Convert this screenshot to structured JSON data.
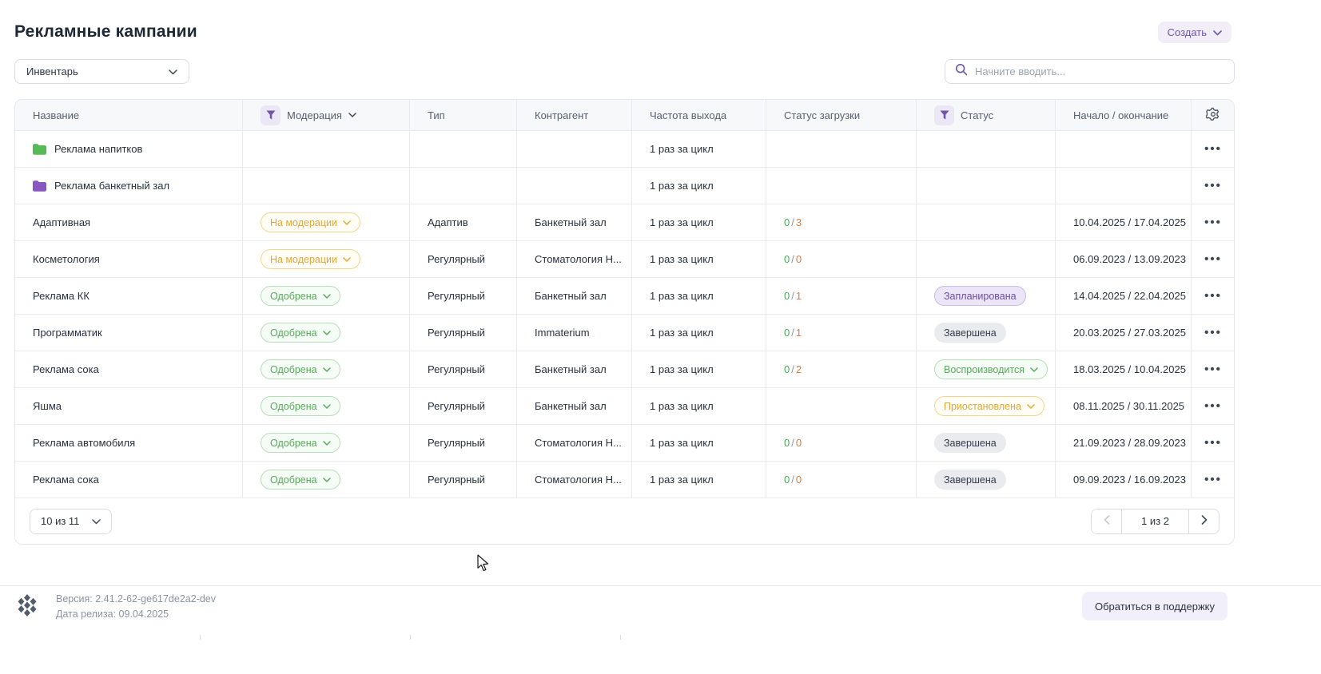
{
  "page_title": "Рекламные кампании",
  "toolbar": {
    "create_button": "Создать",
    "inventory_filter": "Инвентарь",
    "search_placeholder": "Начните вводить..."
  },
  "table": {
    "columns": [
      {
        "key": "name",
        "label": "Название",
        "filter": false,
        "sort": false
      },
      {
        "key": "moderation",
        "label": "Модерация",
        "filter": true,
        "sort": true
      },
      {
        "key": "type",
        "label": "Тип",
        "filter": false,
        "sort": false
      },
      {
        "key": "counterparty",
        "label": "Контрагент",
        "filter": false,
        "sort": false
      },
      {
        "key": "frequency",
        "label": "Частота выхода",
        "filter": false,
        "sort": false
      },
      {
        "key": "upload",
        "label": "Статус загрузки",
        "filter": false,
        "sort": false
      },
      {
        "key": "status",
        "label": "Статус",
        "filter": true,
        "sort": false
      },
      {
        "key": "dates",
        "label": "Начало / окончание",
        "filter": false,
        "sort": false
      }
    ],
    "rows": [
      {
        "name": "Реклама напитков",
        "folder_color": "#57b957",
        "moderation": null,
        "type": "",
        "counterparty": "",
        "frequency": "1 раз за цикл",
        "upload": null,
        "status": null,
        "dates": ""
      },
      {
        "name": "Реклама банкетный зал",
        "folder_color": "#8a56c2",
        "moderation": null,
        "type": "",
        "counterparty": "",
        "frequency": "1 раз за цикл",
        "upload": null,
        "status": null,
        "dates": ""
      },
      {
        "name": "Адаптивная",
        "folder_color": null,
        "moderation": {
          "label": "На модерации",
          "variant": "yellow"
        },
        "type": "Адаптив",
        "counterparty": "Банкетный зал",
        "frequency": "1 раз за цикл",
        "upload": {
          "done": "0",
          "total": "3"
        },
        "status": null,
        "dates": "10.04.2025 / 17.04.2025"
      },
      {
        "name": "Косметология",
        "folder_color": null,
        "moderation": {
          "label": "На модерации",
          "variant": "yellow"
        },
        "type": "Регулярный",
        "counterparty": "Стоматология Н...",
        "frequency": "1 раз за цикл",
        "upload": {
          "done": "0",
          "total": "0"
        },
        "status": null,
        "dates": "06.09.2023 / 13.09.2023"
      },
      {
        "name": "Реклама КК",
        "folder_color": null,
        "moderation": {
          "label": "Одобрена",
          "variant": "green"
        },
        "type": "Регулярный",
        "counterparty": "Банкетный зал",
        "frequency": "1 раз за цикл",
        "upload": {
          "done": "0",
          "total": "1"
        },
        "status": {
          "label": "Запланирована",
          "variant": "purple",
          "chevron": false
        },
        "dates": "14.04.2025 / 22.04.2025"
      },
      {
        "name": "Программатик",
        "folder_color": null,
        "moderation": {
          "label": "Одобрена",
          "variant": "green"
        },
        "type": "Регулярный",
        "counterparty": "Immaterium",
        "frequency": "1 раз за цикл",
        "upload": {
          "done": "0",
          "total": "1"
        },
        "status": {
          "label": "Завершена",
          "variant": "gray",
          "chevron": false
        },
        "dates": "20.03.2025 / 27.03.2025"
      },
      {
        "name": "Реклама сока",
        "folder_color": null,
        "moderation": {
          "label": "Одобрена",
          "variant": "green"
        },
        "type": "Регулярный",
        "counterparty": "Банкетный зал",
        "frequency": "1 раз за цикл",
        "upload": {
          "done": "0",
          "total": "2"
        },
        "status": {
          "label": "Воспроизводится",
          "variant": "green",
          "chevron": true
        },
        "dates": "18.03.2025 / 10.04.2025"
      },
      {
        "name": "Яшма",
        "folder_color": null,
        "moderation": {
          "label": "Одобрена",
          "variant": "green"
        },
        "type": "Регулярный",
        "counterparty": "Банкетный зал",
        "frequency": "1 раз за цикл",
        "upload": null,
        "status": {
          "label": "Приостановлена",
          "variant": "yellow",
          "chevron": true
        },
        "dates": "08.11.2025 / 30.11.2025"
      },
      {
        "name": "Реклама автомобиля",
        "folder_color": null,
        "moderation": {
          "label": "Одобрена",
          "variant": "green"
        },
        "type": "Регулярный",
        "counterparty": "Стоматология Н...",
        "frequency": "1 раз за цикл",
        "upload": {
          "done": "0",
          "total": "0"
        },
        "status": {
          "label": "Завершена",
          "variant": "gray",
          "chevron": false
        },
        "dates": "21.09.2023 / 28.09.2023"
      },
      {
        "name": "Реклама сока",
        "folder_color": null,
        "moderation": {
          "label": "Одобрена",
          "variant": "green"
        },
        "type": "Регулярный",
        "counterparty": "Стоматология Н...",
        "frequency": "1 раз за цикл",
        "upload": {
          "done": "0",
          "total": "0"
        },
        "status": {
          "label": "Завершена",
          "variant": "gray",
          "chevron": false
        },
        "dates": "09.09.2023 / 16.09.2023"
      }
    ],
    "upload_separator": "/"
  },
  "pagination": {
    "size_selector": "10 из 11",
    "page_label": "1 из 2"
  },
  "footer": {
    "version": "Версия: 2.41.2-62-ge617de2a2-dev",
    "release": "Дата релиза: 09.04.2025",
    "support": "Обратиться в поддержку"
  },
  "colors": {
    "accent_purple": "#6f55a9",
    "pill_yellow_text": "#e0a73c",
    "pill_green_text": "#58aa5e",
    "pill_purple_text": "#6a4ea2",
    "upload_done_green": "#4bab57",
    "upload_total_orange": "#e07b3a",
    "folder_green": "#57b957",
    "folder_purple": "#8a56c2"
  }
}
